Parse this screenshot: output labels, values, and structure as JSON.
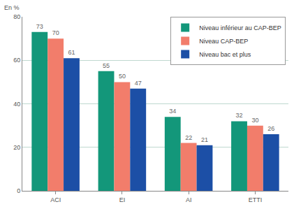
{
  "chart_data": {
    "type": "bar",
    "ylabel": "En %",
    "categories": [
      "ACI",
      "EI",
      "AI",
      "ETTI"
    ],
    "series": [
      {
        "name": "Niveau inférieur au CAP-BEP",
        "color": "#13977a",
        "values": [
          73,
          55,
          34,
          32
        ]
      },
      {
        "name": "Niveau CAP-BEP",
        "color": "#f27d6b",
        "values": [
          70,
          50,
          22,
          30
        ]
      },
      {
        "name": "Niveau bac et plus",
        "color": "#1c4fa6",
        "values": [
          61,
          47,
          21,
          26
        ]
      }
    ],
    "ylim": [
      0,
      80
    ],
    "yticks": [
      0,
      20,
      40,
      60,
      80
    ],
    "grid": true,
    "legend": "top right",
    "data_labels": true
  }
}
